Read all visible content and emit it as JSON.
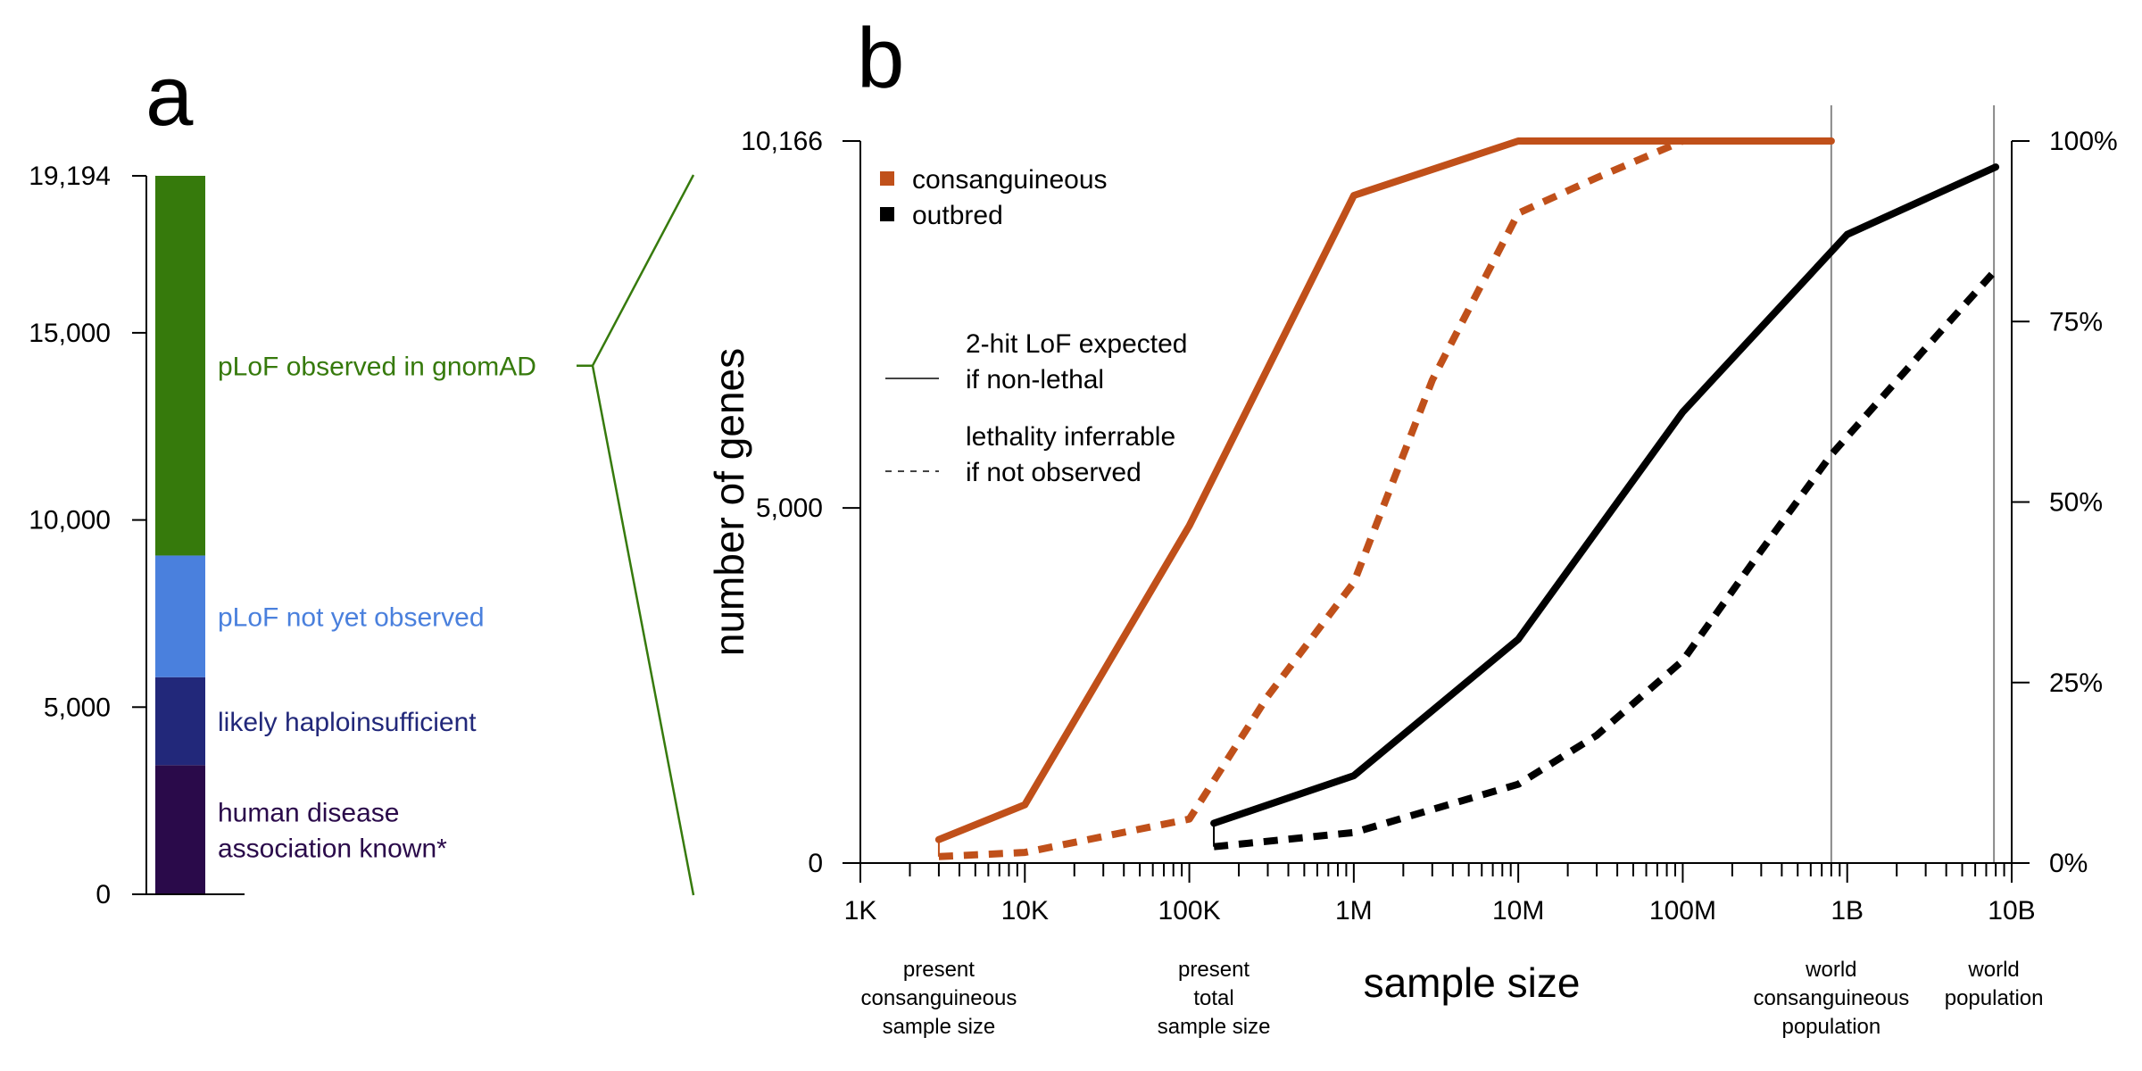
{
  "chart_data": [
    {
      "panel": "a",
      "type": "bar",
      "stacked": true,
      "ylim": [
        0,
        19194
      ],
      "ytick_values": [
        0,
        5000,
        10000,
        15000,
        19194
      ],
      "ytick_labels": [
        "0",
        "5,000",
        "10,000",
        "15,000",
        "19,194"
      ],
      "segments": [
        {
          "name": "human disease association known*",
          "value": 3450,
          "color": "#2a0a4a",
          "label_lines": [
            "human disease",
            "association known*"
          ]
        },
        {
          "name": "likely haploinsufficient",
          "value": 2350,
          "color": "#22287a",
          "label_lines": [
            "likely haploinsufficient"
          ]
        },
        {
          "name": "pLoF not yet observed",
          "value": 3250,
          "color": "#4a80dd",
          "label_lines": [
            "pLoF not yet observed"
          ]
        },
        {
          "name": "pLoF observed in gnomAD",
          "value": 10144,
          "color": "#367a0c",
          "label_lines": [
            "pLoF observed in gnomAD"
          ]
        }
      ]
    },
    {
      "panel": "b",
      "type": "line",
      "xlabel": "sample size",
      "ylabel": "number of genes",
      "x_scale": "log",
      "xlim": [
        1000,
        10000000000
      ],
      "ylim": [
        0,
        10166
      ],
      "xtick_values": [
        1000,
        10000,
        100000,
        1000000,
        10000000,
        100000000,
        1000000000,
        10000000000
      ],
      "xtick_labels": [
        "1K",
        "10K",
        "100K",
        "1M",
        "10M",
        "100M",
        "1B",
        "10B"
      ],
      "ytick_values": [
        0,
        5000,
        10166
      ],
      "ytick_labels": [
        "0",
        "5,000",
        "10,166"
      ],
      "y2_tick_values": [
        0,
        2541.5,
        5083,
        7624.5,
        10166
      ],
      "y2_tick_labels": [
        "0%",
        "25%",
        "50%",
        "75%",
        "100%"
      ],
      "series": [
        {
          "name": "consanguineous",
          "dash": false,
          "color": "#c0501a",
          "x": [
            3000,
            10000,
            100000,
            1000000,
            10000000,
            100000000,
            800000000
          ],
          "y": [
            330,
            820,
            4750,
            9400,
            10166,
            10166,
            10166
          ]
        },
        {
          "name": "consanguineous",
          "dash": true,
          "color": "#c0501a",
          "x": [
            3000,
            10000,
            100000,
            300000,
            1000000,
            3000000,
            10000000,
            30000000,
            100000000
          ],
          "y": [
            90,
            150,
            620,
            2350,
            3950,
            6800,
            9150,
            9650,
            10166
          ]
        },
        {
          "name": "outbred",
          "dash": false,
          "color": "#000000",
          "x": [
            141000,
            1000000,
            10000000,
            100000000,
            1000000000,
            8000000000
          ],
          "y": [
            560,
            1230,
            3150,
            6350,
            8850,
            9800
          ]
        },
        {
          "name": "outbred",
          "dash": true,
          "color": "#000000",
          "x": [
            141000,
            1000000,
            10000000,
            30000000,
            100000000,
            300000000,
            800000000,
            3000000000,
            8000000000
          ],
          "y": [
            230,
            430,
            1110,
            1800,
            2850,
            4400,
            5750,
            7250,
            8350
          ]
        }
      ],
      "reference_lines": [
        {
          "x": 800000000,
          "label_lines": [
            "world",
            "consanguineous",
            "population"
          ]
        },
        {
          "x": 7800000000,
          "label_lines": [
            "world",
            "population"
          ]
        }
      ],
      "point_annotations": [
        {
          "x": 3000,
          "label_lines": [
            "present",
            "consanguineous",
            "sample size"
          ]
        },
        {
          "x": 141000,
          "label_lines": [
            "present",
            "total",
            "sample size"
          ]
        }
      ],
      "legend": {
        "position": "top-left",
        "colors": [
          {
            "label": "consanguineous",
            "color": "#c0501a"
          },
          {
            "label": "outbred",
            "color": "#000000"
          }
        ],
        "styles": [
          {
            "label_lines": [
              "2-hit LoF expected",
              "if non-lethal"
            ],
            "dash": false
          },
          {
            "label_lines": [
              "lethality inferrable",
              "if not observed"
            ],
            "dash": true
          }
        ]
      }
    }
  ],
  "panel_labels": [
    "a",
    "b"
  ]
}
